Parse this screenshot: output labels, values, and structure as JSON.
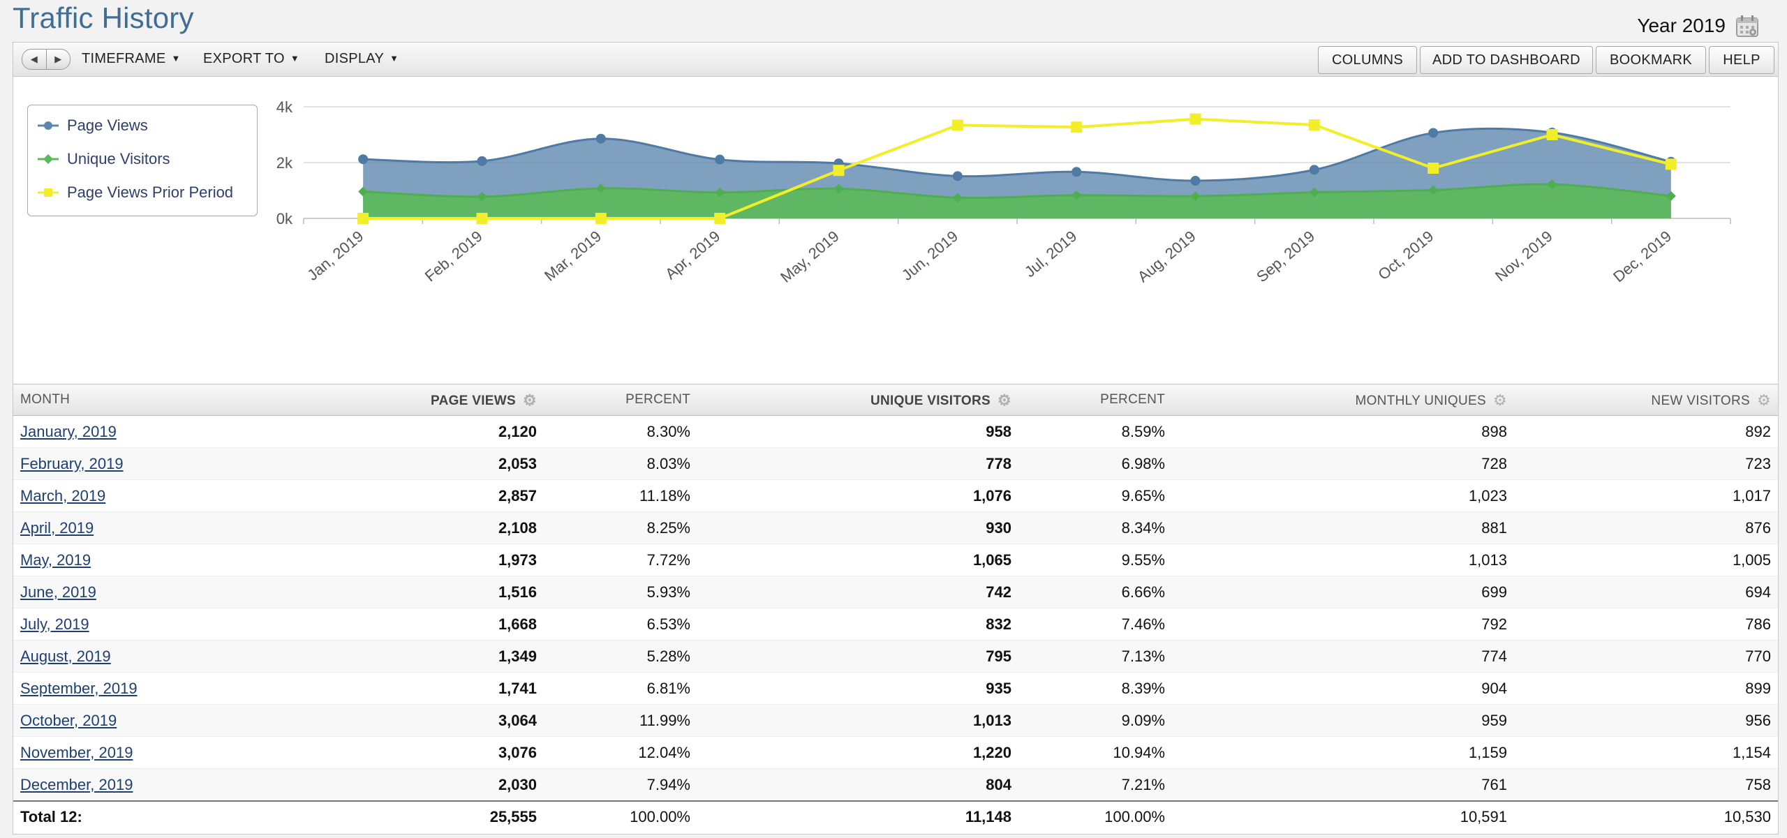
{
  "page_title": "Traffic History",
  "period_label": "Year 2019",
  "toolbar": {
    "menus": [
      "TIMEFRAME",
      "EXPORT TO",
      "DISPLAY"
    ],
    "buttons": [
      "COLUMNS",
      "ADD TO DASHBOARD",
      "BOOKMARK",
      "HELP"
    ]
  },
  "legend": [
    "Page Views",
    "Unique Visitors",
    "Page Views Prior Period"
  ],
  "colors": {
    "page_views": "#5b86ad",
    "unique_visitors": "#5cb85c",
    "prior_period": "#f2ee2a",
    "title": "#3f6d96",
    "link": "#1d3f73"
  },
  "chart_data": {
    "type": "area",
    "categories": [
      "Jan, 2019",
      "Feb, 2019",
      "Mar, 2019",
      "Apr, 2019",
      "May, 2019",
      "Jun, 2019",
      "Jul, 2019",
      "Aug, 2019",
      "Sep, 2019",
      "Oct, 2019",
      "Nov, 2019",
      "Dec, 2019"
    ],
    "y_ticks": [
      "4k",
      "2k",
      "0k"
    ],
    "ylim": [
      0,
      4000
    ],
    "grid": true,
    "legend_position": "top-left",
    "series": [
      {
        "name": "Page Views",
        "type": "area",
        "values": [
          2120,
          2053,
          2857,
          2108,
          1973,
          1516,
          1668,
          1349,
          1741,
          3064,
          3076,
          2030
        ]
      },
      {
        "name": "Unique Visitors",
        "type": "area",
        "values": [
          958,
          778,
          1076,
          930,
          1065,
          742,
          832,
          795,
          935,
          1013,
          1220,
          804
        ]
      },
      {
        "name": "Page Views Prior Period",
        "type": "line",
        "values": [
          0,
          0,
          0,
          0,
          1720,
          3340,
          3270,
          3560,
          3350,
          1800,
          3000,
          1940
        ]
      }
    ]
  },
  "table": {
    "columns": [
      "MONTH",
      "PAGE VIEWS",
      "PERCENT",
      "UNIQUE VISITORS",
      "PERCENT",
      "MONTHLY UNIQUES",
      "NEW VISITORS"
    ],
    "rows": [
      [
        "January, 2019",
        "2,120",
        "8.30%",
        "958",
        "8.59%",
        "898",
        "892"
      ],
      [
        "February, 2019",
        "2,053",
        "8.03%",
        "778",
        "6.98%",
        "728",
        "723"
      ],
      [
        "March, 2019",
        "2,857",
        "11.18%",
        "1,076",
        "9.65%",
        "1,023",
        "1,017"
      ],
      [
        "April, 2019",
        "2,108",
        "8.25%",
        "930",
        "8.34%",
        "881",
        "876"
      ],
      [
        "May, 2019",
        "1,973",
        "7.72%",
        "1,065",
        "9.55%",
        "1,013",
        "1,005"
      ],
      [
        "June, 2019",
        "1,516",
        "5.93%",
        "742",
        "6.66%",
        "699",
        "694"
      ],
      [
        "July, 2019",
        "1,668",
        "6.53%",
        "832",
        "7.46%",
        "792",
        "786"
      ],
      [
        "August, 2019",
        "1,349",
        "5.28%",
        "795",
        "7.13%",
        "774",
        "770"
      ],
      [
        "September, 2019",
        "1,741",
        "6.81%",
        "935",
        "8.39%",
        "904",
        "899"
      ],
      [
        "October, 2019",
        "3,064",
        "11.99%",
        "1,013",
        "9.09%",
        "959",
        "956"
      ],
      [
        "November, 2019",
        "3,076",
        "12.04%",
        "1,220",
        "10.94%",
        "1,159",
        "1,154"
      ],
      [
        "December, 2019",
        "2,030",
        "7.94%",
        "804",
        "7.21%",
        "761",
        "758"
      ]
    ],
    "total": [
      "Total 12:",
      "25,555",
      "100.00%",
      "11,148",
      "100.00%",
      "10,591",
      "10,530"
    ]
  }
}
